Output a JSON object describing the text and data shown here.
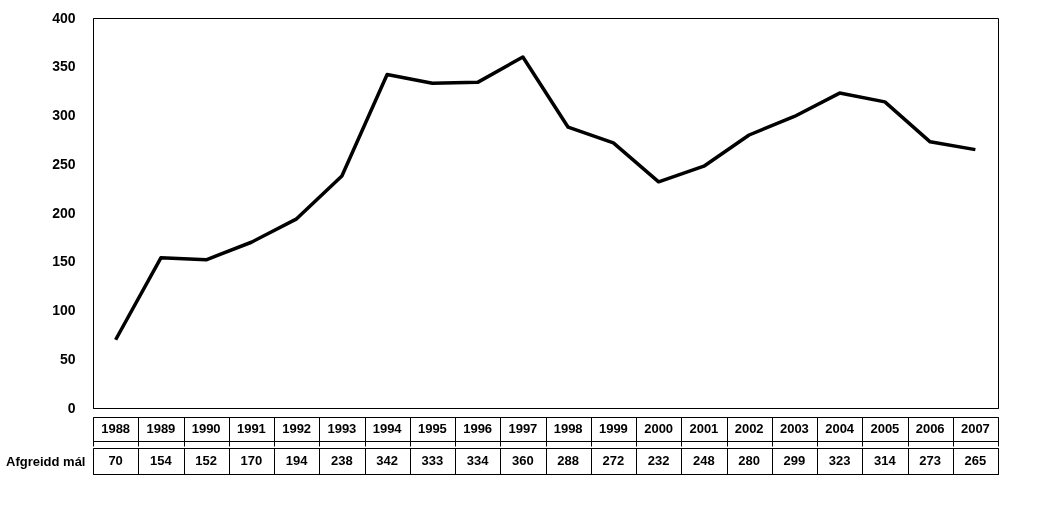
{
  "chart_data": {
    "type": "line",
    "categories": [
      "1988",
      "1989",
      "1990",
      "1991",
      "1992",
      "1993",
      "1994",
      "1995",
      "1996",
      "1997",
      "1998",
      "1999",
      "2000",
      "2001",
      "2002",
      "2003",
      "2004",
      "2005",
      "2006",
      "2007"
    ],
    "series": [
      {
        "name": "Afgreidd mál",
        "color": "#000000",
        "values": [
          70,
          154,
          152,
          170,
          194,
          238,
          342,
          333,
          334,
          360,
          288,
          272,
          232,
          248,
          280,
          299,
          323,
          314,
          273,
          265
        ]
      }
    ],
    "ylim": [
      0,
      400
    ],
    "yticks": [
      0,
      50,
      100,
      150,
      200,
      250,
      300,
      350,
      400
    ],
    "grid": false,
    "legend": "bottom left",
    "data_labels": true,
    "marker": "none",
    "line_style": "solid"
  }
}
